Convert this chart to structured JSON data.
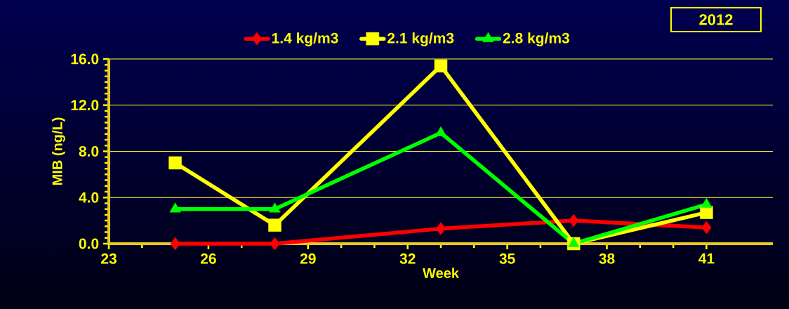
{
  "chart_data": {
    "type": "line",
    "xlabel": "Week",
    "ylabel": "MIB (ng/L)",
    "annotations": [
      "2012"
    ],
    "x": [
      25,
      28,
      33,
      37,
      41
    ],
    "xlim": [
      23,
      43
    ],
    "xticks": [
      23,
      26,
      29,
      32,
      35,
      38,
      41
    ],
    "ylim": [
      0,
      16
    ],
    "yticks": [
      {
        "value": 0,
        "label": "0.0"
      },
      {
        "value": 4,
        "label": "4.0"
      },
      {
        "value": 8,
        "label": "8.0"
      },
      {
        "value": 12,
        "label": "12.0"
      },
      {
        "value": 16,
        "label": "16.0"
      }
    ],
    "grid": "y",
    "legend": "top",
    "line_style": "solid",
    "series": [
      {
        "name": "1.4 kg/m3",
        "color": "#ff0000",
        "marker": "diamond",
        "values": [
          0,
          0,
          1.3,
          2.0,
          1.4
        ]
      },
      {
        "name": "2.1 kg/m3",
        "color": "#ffff00",
        "marker": "square",
        "values": [
          7.0,
          1.6,
          15.4,
          0,
          2.7
        ]
      },
      {
        "name": "2.8 kg/m3",
        "color": "#00ff00",
        "marker": "triangle",
        "values": [
          3.0,
          3.0,
          9.6,
          0,
          3.4
        ]
      }
    ]
  }
}
